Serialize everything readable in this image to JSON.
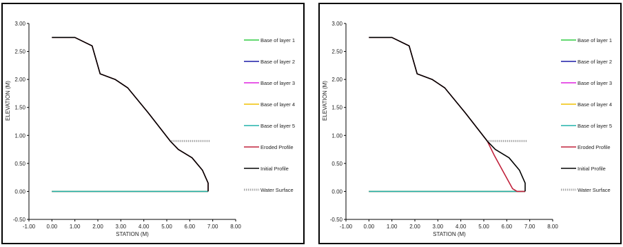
{
  "chart_data": [
    {
      "type": "line",
      "xlabel": "STATION (M)",
      "ylabel": "ELEVATION (M)",
      "xlim": [
        -1.0,
        8.0
      ],
      "ylim": [
        -0.5,
        3.0
      ],
      "xticks": [
        "-1.00",
        "0.00",
        "1.00",
        "2.00",
        "3.00",
        "4.00",
        "5.00",
        "6.00",
        "7.00",
        "8.00"
      ],
      "yticks": [
        "3.00",
        "2.50",
        "2.00",
        "1.50",
        "1.00",
        "0.50",
        "0.00",
        "-0.50"
      ],
      "legend_position": "right",
      "series": [
        {
          "name": "Base of layer 1",
          "color": "#2ecc40",
          "style": "solid",
          "x": [
            0.0,
            6.8
          ],
          "y": [
            0.0,
            0.0
          ]
        },
        {
          "name": "Base of layer 2",
          "color": "#1a1aa6",
          "style": "solid",
          "x": [
            0.0,
            6.8
          ],
          "y": [
            0.0,
            0.0
          ]
        },
        {
          "name": "Base of layer 3",
          "color": "#e020e0",
          "style": "solid",
          "x": [
            0.0,
            6.8
          ],
          "y": [
            0.0,
            0.0
          ]
        },
        {
          "name": "Base of layer 4",
          "color": "#f0c000",
          "style": "solid",
          "x": [
            0.0,
            6.8
          ],
          "y": [
            0.0,
            0.0
          ]
        },
        {
          "name": "Base of layer 5",
          "color": "#20b2aa",
          "style": "solid",
          "x": [
            0.0,
            6.8
          ],
          "y": [
            0.0,
            0.0
          ]
        },
        {
          "name": "Eroded Profile",
          "color": "#c0203a",
          "style": "solid",
          "x": [
            0.0,
            1.0,
            1.75,
            2.1,
            2.75,
            3.3,
            4.2,
            5.15,
            5.5,
            6.1,
            6.55,
            6.8,
            6.8
          ],
          "y": [
            2.75,
            2.75,
            2.6,
            2.1,
            2.0,
            1.85,
            1.4,
            0.9,
            0.75,
            0.6,
            0.38,
            0.15,
            0.0
          ]
        },
        {
          "name": "Initial Profile",
          "color": "#000000",
          "style": "solid",
          "x": [
            0.0,
            1.0,
            1.75,
            2.1,
            2.75,
            3.3,
            4.2,
            5.15,
            5.5,
            6.1,
            6.55,
            6.8,
            6.8
          ],
          "y": [
            2.75,
            2.75,
            2.6,
            2.1,
            2.0,
            1.85,
            1.4,
            0.9,
            0.75,
            0.6,
            0.38,
            0.15,
            0.0
          ]
        },
        {
          "name": "Water Surface",
          "color": "#a8a8a8",
          "style": "dotted",
          "x": [
            5.2,
            6.9
          ],
          "y": [
            0.9,
            0.9
          ]
        }
      ]
    },
    {
      "type": "line",
      "xlabel": "STATION (M)",
      "ylabel": "ELEVATION (M)",
      "xlim": [
        -1.0,
        8.0
      ],
      "ylim": [
        -0.5,
        3.0
      ],
      "xticks": [
        "-1.00",
        "0.00",
        "1.00",
        "2.00",
        "3.00",
        "4.00",
        "5.00",
        "6.00",
        "7.00",
        "8.00"
      ],
      "yticks": [
        "3.00",
        "2.50",
        "2.00",
        "1.50",
        "1.00",
        "0.50",
        "0.00",
        "-0.50"
      ],
      "legend_position": "right",
      "series": [
        {
          "name": "Base of layer 1",
          "color": "#2ecc40",
          "style": "solid",
          "x": [
            0.0,
            6.8
          ],
          "y": [
            0.0,
            0.0
          ]
        },
        {
          "name": "Base of layer 2",
          "color": "#1a1aa6",
          "style": "solid",
          "x": [
            0.0,
            6.8
          ],
          "y": [
            0.0,
            0.0
          ]
        },
        {
          "name": "Base of layer 3",
          "color": "#e020e0",
          "style": "solid",
          "x": [
            0.0,
            6.8
          ],
          "y": [
            0.0,
            0.0
          ]
        },
        {
          "name": "Base of layer 4",
          "color": "#f0c000",
          "style": "solid",
          "x": [
            0.0,
            6.8
          ],
          "y": [
            0.0,
            0.0
          ]
        },
        {
          "name": "Base of layer 5",
          "color": "#20b2aa",
          "style": "solid",
          "x": [
            0.0,
            6.8
          ],
          "y": [
            0.0,
            0.0
          ]
        },
        {
          "name": "Eroded Profile",
          "color": "#c0203a",
          "style": "solid",
          "x": [
            0.0,
            1.0,
            1.75,
            2.1,
            2.75,
            3.3,
            4.2,
            5.15,
            5.45,
            5.85,
            6.25,
            6.45,
            6.8,
            6.8
          ],
          "y": [
            2.75,
            2.75,
            2.6,
            2.1,
            2.0,
            1.85,
            1.4,
            0.9,
            0.65,
            0.35,
            0.05,
            0.0,
            0.0,
            0.0
          ]
        },
        {
          "name": "Initial Profile",
          "color": "#000000",
          "style": "solid",
          "x": [
            0.0,
            1.0,
            1.75,
            2.1,
            2.75,
            3.3,
            4.2,
            5.15,
            5.5,
            6.1,
            6.55,
            6.8,
            6.8
          ],
          "y": [
            2.75,
            2.75,
            2.6,
            2.1,
            2.0,
            1.85,
            1.4,
            0.9,
            0.75,
            0.6,
            0.38,
            0.15,
            0.0
          ]
        },
        {
          "name": "Water Surface",
          "color": "#a8a8a8",
          "style": "dotted",
          "x": [
            5.2,
            6.9
          ],
          "y": [
            0.9,
            0.9
          ]
        }
      ]
    }
  ]
}
